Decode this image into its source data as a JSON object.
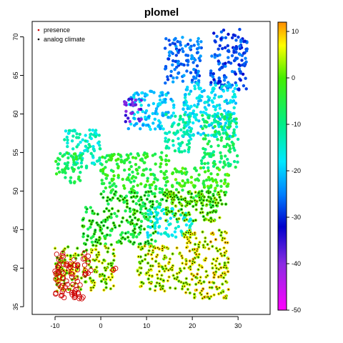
{
  "chart_data": {
    "type": "scatter",
    "title": "plomel",
    "xlim": [
      -15,
      37
    ],
    "ylim": [
      34,
      72
    ],
    "x_ticks": [
      -10,
      0,
      10,
      20,
      30
    ],
    "y_ticks": [
      35,
      40,
      45,
      50,
      55,
      60,
      65,
      70
    ],
    "grid": false,
    "legend": {
      "placement": "top-left",
      "entries": [
        {
          "label": "presence",
          "color": "#cc0000"
        },
        {
          "label": "analog climate",
          "color": "#000000"
        }
      ]
    },
    "colorbar": {
      "range": [
        -50,
        12
      ],
      "ticks": [
        10,
        0,
        -10,
        -20,
        -30,
        -40,
        -50
      ],
      "gradient": [
        {
          "value": 12,
          "color": "#ff8c00"
        },
        {
          "value": 7,
          "color": "#ffff00"
        },
        {
          "value": 0,
          "color": "#44ee00"
        },
        {
          "value": -10,
          "color": "#00ee88"
        },
        {
          "value": -18,
          "color": "#00e8ff"
        },
        {
          "value": -25,
          "color": "#0080ff"
        },
        {
          "value": -32,
          "color": "#0000cc"
        },
        {
          "value": -40,
          "color": "#8a2be2"
        },
        {
          "value": -50,
          "color": "#ff00ff"
        }
      ]
    },
    "regions": [
      {
        "lon": [
          24,
          32
        ],
        "lat": [
          63,
          71
        ],
        "value": -28
      },
      {
        "lon": [
          14,
          22
        ],
        "lat": [
          64,
          70
        ],
        "value": -26
      },
      {
        "lon": [
          18,
          30
        ],
        "lat": [
          57,
          64
        ],
        "value": -18
      },
      {
        "lon": [
          6,
          16
        ],
        "lat": [
          58,
          63
        ],
        "value": -20
      },
      {
        "lon": [
          5,
          9
        ],
        "lat": [
          59,
          62
        ],
        "value": -38
      },
      {
        "lon": [
          14,
          20
        ],
        "lat": [
          55,
          60
        ],
        "value": -12
      },
      {
        "lon": [
          22,
          30
        ],
        "lat": [
          53,
          60
        ],
        "value": -8
      },
      {
        "lon": [
          -8,
          0
        ],
        "lat": [
          53,
          58
        ],
        "value": -14
      },
      {
        "lon": [
          -10,
          -4
        ],
        "lat": [
          51,
          55
        ],
        "value": -6
      },
      {
        "lon": [
          0,
          15
        ],
        "lat": [
          48,
          55
        ],
        "value": -4
      },
      {
        "lon": [
          15,
          28
        ],
        "lat": [
          48,
          53
        ],
        "value": -2
      },
      {
        "lon": [
          -4,
          12
        ],
        "lat": [
          43,
          48
        ],
        "value": -3
      },
      {
        "lon": [
          10,
          20
        ],
        "lat": [
          44,
          48
        ],
        "value": -16
      },
      {
        "lon": [
          14,
          26
        ],
        "lat": [
          46,
          50
        ],
        "value": 1
      },
      {
        "lon": [
          -10,
          3
        ],
        "lat": [
          37,
          43
        ],
        "value": 4
      },
      {
        "lon": [
          8,
          18
        ],
        "lat": [
          37,
          43
        ],
        "value": 5
      },
      {
        "lon": [
          18,
          28
        ],
        "lat": [
          36,
          45
        ],
        "value": 6
      }
    ],
    "presence_regions": [
      {
        "lon": [
          -10,
          -5
        ],
        "lat": [
          36,
          42
        ]
      },
      {
        "lon": [
          -6,
          -3
        ],
        "lat": [
          36,
          38
        ]
      },
      {
        "lon": [
          -4,
          -2
        ],
        "lat": [
          39,
          42
        ]
      },
      {
        "lon": [
          2.5,
          3.5
        ],
        "lat": [
          39.5,
          40.2
        ]
      }
    ]
  }
}
